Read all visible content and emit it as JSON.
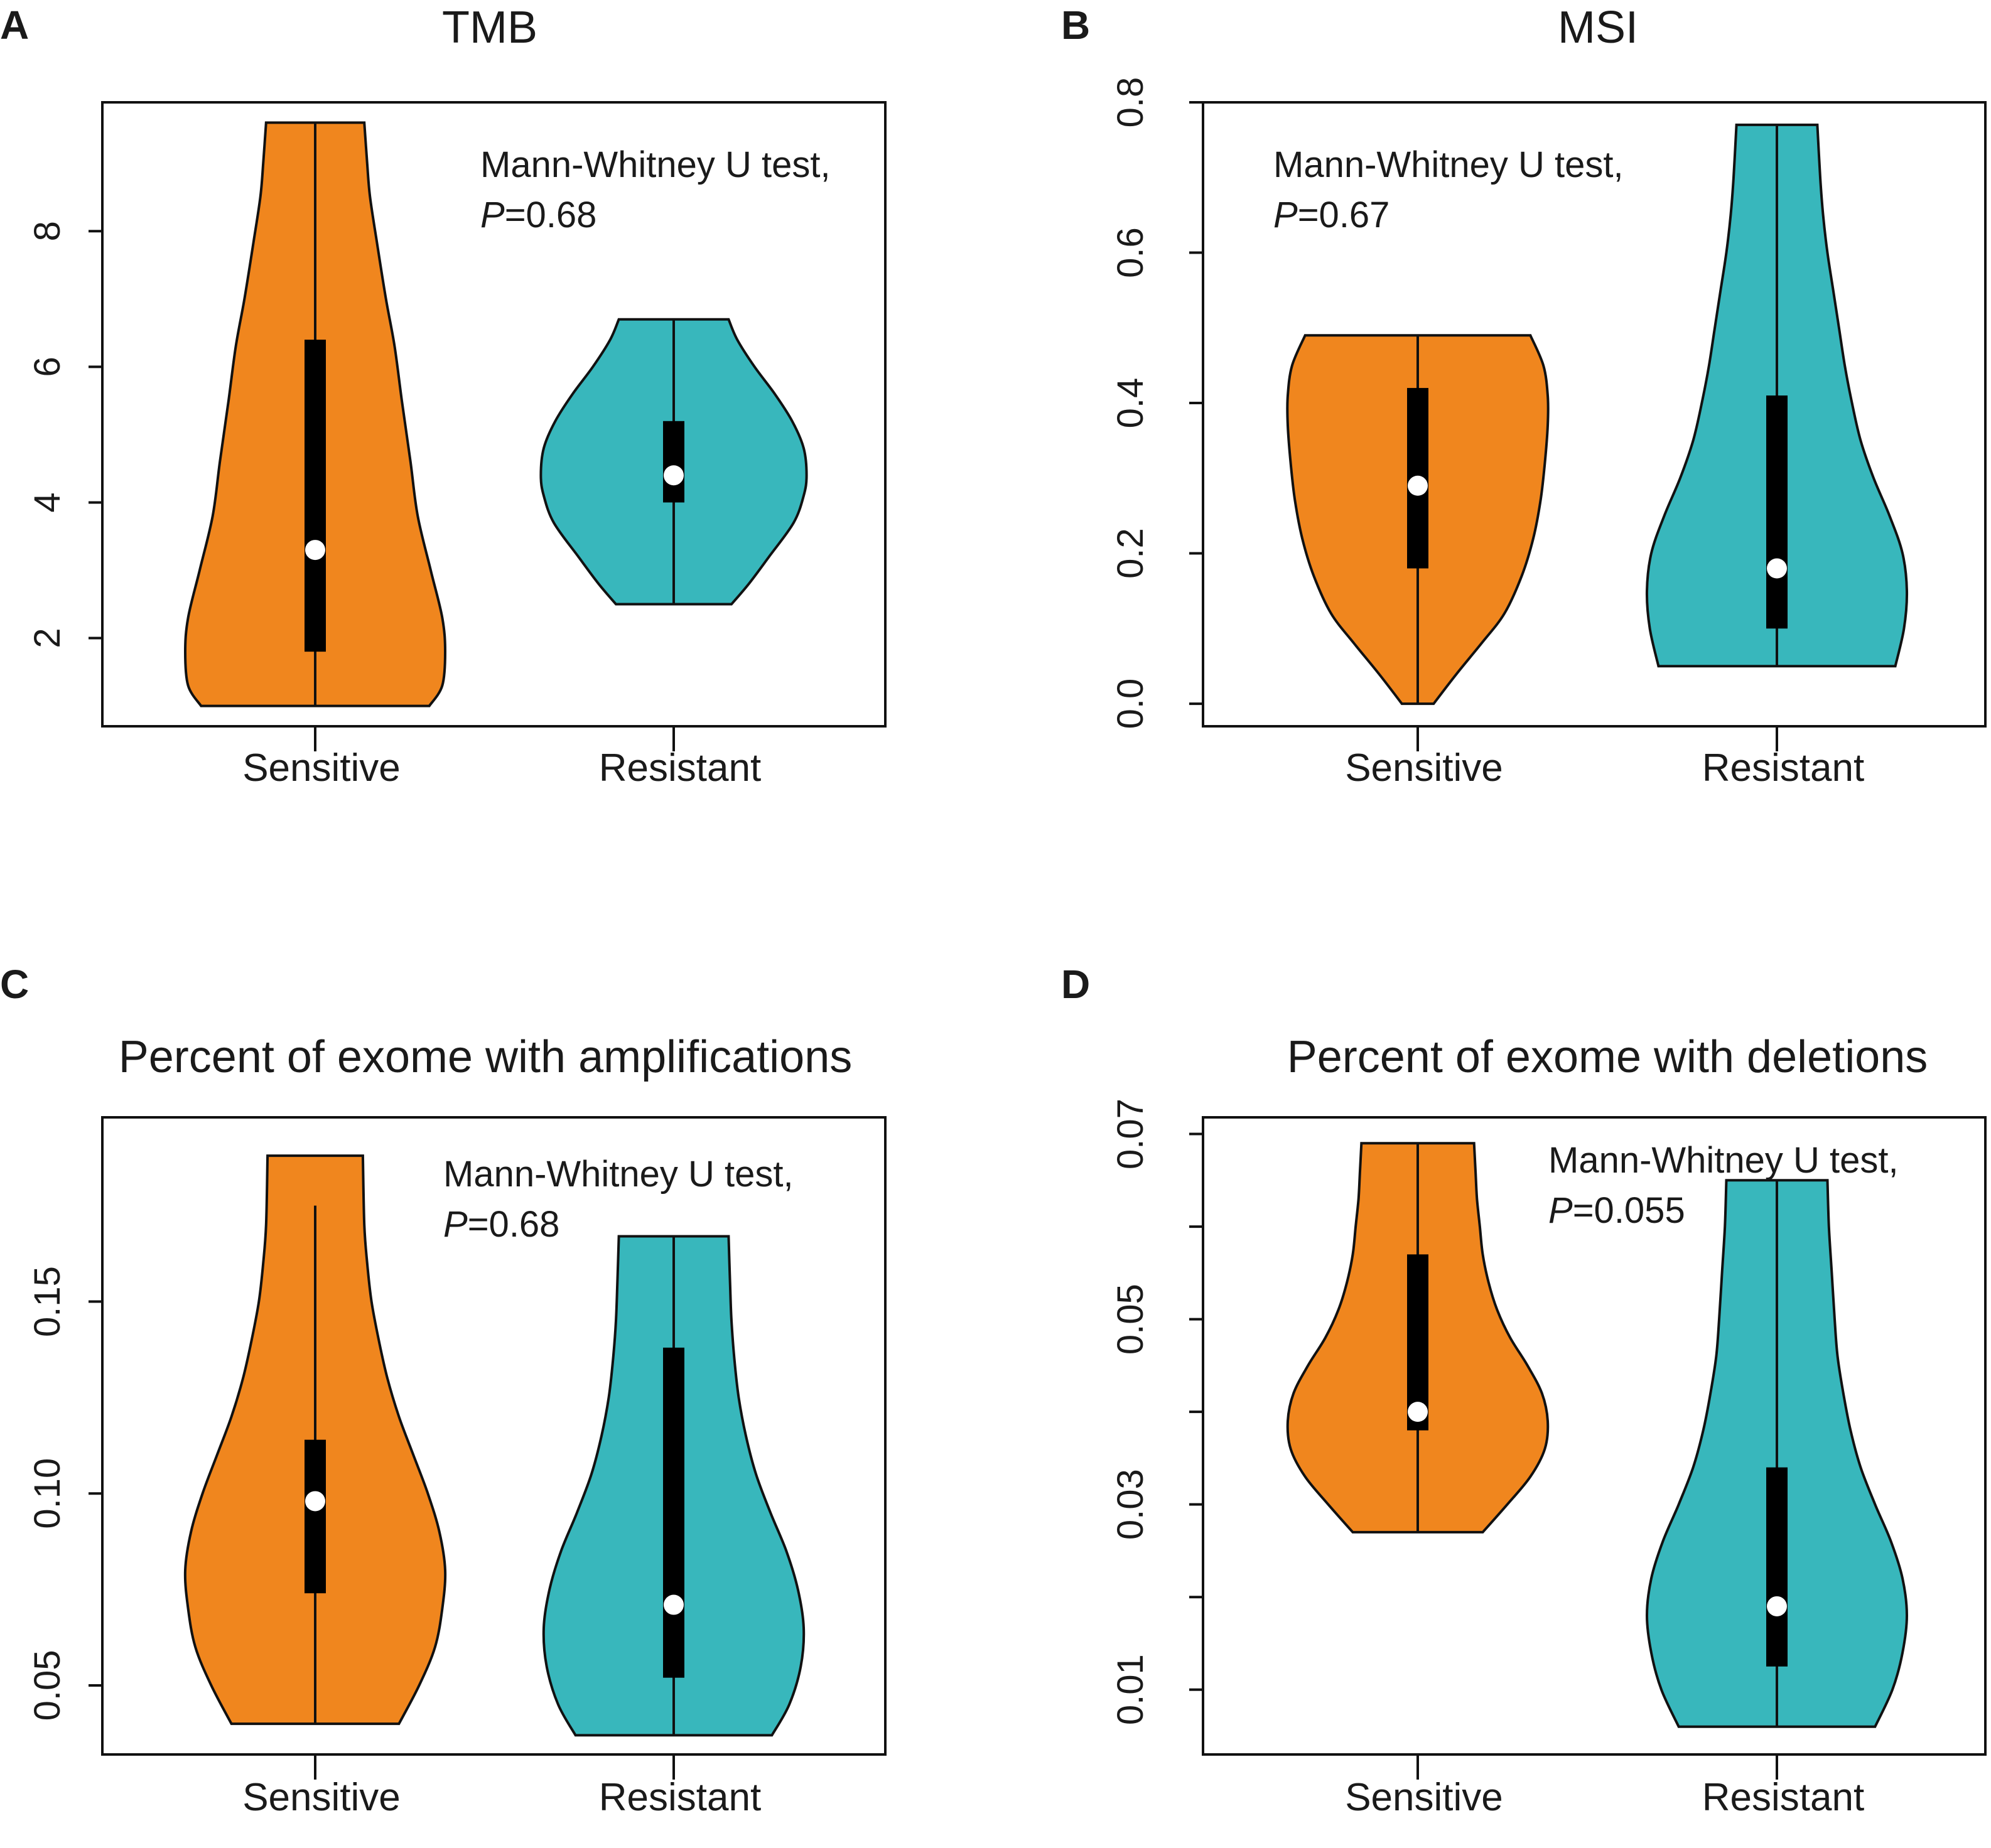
{
  "figure": {
    "background": "#ffffff"
  },
  "colors": {
    "sensitive": "#F0861E",
    "resistant": "#38B7BC",
    "outline": "#111111",
    "box": "#000000",
    "median": "#ffffff"
  },
  "chart_data": [
    {
      "panel": "A",
      "type": "violin",
      "title": "TMB",
      "xlabel": "",
      "ylabel": "",
      "categories": [
        "Sensitive",
        "Resistant"
      ],
      "yticks": [
        2,
        4,
        6,
        8
      ],
      "ytick_labels": [
        "2",
        "4",
        "6",
        "8"
      ],
      "ylim": [
        0.7,
        9.9
      ],
      "series": [
        {
          "name": "Sensitive",
          "min": 1.0,
          "q1": 1.8,
          "median": 3.3,
          "q3": 6.4,
          "max": 9.6,
          "density": [
            [
              1.0,
              0.79
            ],
            [
              1.3,
              0.88
            ],
            [
              1.8,
              0.9
            ],
            [
              2.3,
              0.88
            ],
            [
              3.0,
              0.8
            ],
            [
              3.8,
              0.71
            ],
            [
              4.6,
              0.66
            ],
            [
              5.5,
              0.6
            ],
            [
              6.3,
              0.55
            ],
            [
              7.0,
              0.49
            ],
            [
              7.8,
              0.43
            ],
            [
              8.5,
              0.38
            ],
            [
              9.0,
              0.36
            ],
            [
              9.6,
              0.34
            ]
          ]
        },
        {
          "name": "Resistant",
          "min": 2.5,
          "q1": 4.0,
          "median": 4.4,
          "q3": 5.2,
          "max": 6.7,
          "density": [
            [
              2.5,
              0.4
            ],
            [
              2.8,
              0.52
            ],
            [
              3.2,
              0.66
            ],
            [
              3.7,
              0.83
            ],
            [
              4.1,
              0.9
            ],
            [
              4.4,
              0.92
            ],
            [
              4.8,
              0.9
            ],
            [
              5.2,
              0.82
            ],
            [
              5.6,
              0.7
            ],
            [
              6.0,
              0.56
            ],
            [
              6.4,
              0.44
            ],
            [
              6.7,
              0.38
            ]
          ]
        }
      ],
      "annotation": {
        "line1": "Mann-Whitney U test,",
        "p_label": "P",
        "p_value": "=0.68"
      }
    },
    {
      "panel": "B",
      "type": "violin",
      "title": "MSI",
      "xlabel": "",
      "ylabel": "",
      "categories": [
        "Sensitive",
        "Resistant"
      ],
      "yticks": [
        0.0,
        0.2,
        0.4,
        0.6,
        0.8
      ],
      "ytick_labels": [
        "0.0",
        "0.2",
        "0.4",
        "0.6",
        "0.8"
      ],
      "ylim": [
        -0.03,
        0.8
      ],
      "series": [
        {
          "name": "Sensitive",
          "min": 0.0,
          "q1": 0.18,
          "median": 0.29,
          "q3": 0.42,
          "max": 0.49,
          "density": [
            [
              0.0,
              0.11
            ],
            [
              0.04,
              0.27
            ],
            [
              0.08,
              0.44
            ],
            [
              0.12,
              0.6
            ],
            [
              0.17,
              0.72
            ],
            [
              0.22,
              0.8
            ],
            [
              0.27,
              0.85
            ],
            [
              0.32,
              0.88
            ],
            [
              0.37,
              0.9
            ],
            [
              0.41,
              0.9
            ],
            [
              0.45,
              0.87
            ],
            [
              0.49,
              0.78
            ]
          ]
        },
        {
          "name": "Resistant",
          "min": 0.05,
          "q1": 0.1,
          "median": 0.18,
          "q3": 0.41,
          "max": 0.77,
          "density": [
            [
              0.05,
              0.82
            ],
            [
              0.1,
              0.88
            ],
            [
              0.15,
              0.9
            ],
            [
              0.2,
              0.87
            ],
            [
              0.25,
              0.78
            ],
            [
              0.3,
              0.67
            ],
            [
              0.35,
              0.58
            ],
            [
              0.4,
              0.52
            ],
            [
              0.45,
              0.47
            ],
            [
              0.5,
              0.43
            ],
            [
              0.55,
              0.39
            ],
            [
              0.6,
              0.35
            ],
            [
              0.65,
              0.32
            ],
            [
              0.7,
              0.3
            ],
            [
              0.77,
              0.28
            ]
          ]
        }
      ],
      "annotation": {
        "line1": "Mann-Whitney U test,",
        "p_label": "P",
        "p_value": "=0.67"
      }
    },
    {
      "panel": "C",
      "type": "violin",
      "title": "Percent of exome with amplifications",
      "xlabel": "",
      "ylabel": "",
      "categories": [
        "Sensitive",
        "Resistant"
      ],
      "yticks": [
        0.05,
        0.1,
        0.15
      ],
      "ytick_labels": [
        "0.05",
        "0.10",
        "0.15"
      ],
      "ylim": [
        0.032,
        0.198
      ],
      "series": [
        {
          "name": "Sensitive",
          "min": 0.04,
          "q1": 0.074,
          "median": 0.098,
          "q3": 0.114,
          "max": 0.188,
          "lower_whisker": 0.04,
          "upper_whisker": 0.175,
          "density": [
            [
              0.04,
              0.58
            ],
            [
              0.05,
              0.72
            ],
            [
              0.06,
              0.83
            ],
            [
              0.07,
              0.88
            ],
            [
              0.08,
              0.9
            ],
            [
              0.09,
              0.86
            ],
            [
              0.1,
              0.78
            ],
            [
              0.11,
              0.68
            ],
            [
              0.12,
              0.58
            ],
            [
              0.13,
              0.5
            ],
            [
              0.14,
              0.44
            ],
            [
              0.15,
              0.39
            ],
            [
              0.16,
              0.36
            ],
            [
              0.17,
              0.34
            ],
            [
              0.188,
              0.33
            ]
          ]
        },
        {
          "name": "Resistant",
          "min": 0.037,
          "q1": 0.052,
          "median": 0.071,
          "q3": 0.138,
          "max": 0.167,
          "density": [
            [
              0.037,
              0.68
            ],
            [
              0.045,
              0.8
            ],
            [
              0.055,
              0.88
            ],
            [
              0.065,
              0.9
            ],
            [
              0.075,
              0.86
            ],
            [
              0.085,
              0.78
            ],
            [
              0.095,
              0.67
            ],
            [
              0.105,
              0.57
            ],
            [
              0.115,
              0.5
            ],
            [
              0.125,
              0.45
            ],
            [
              0.135,
              0.42
            ],
            [
              0.145,
              0.4
            ],
            [
              0.155,
              0.39
            ],
            [
              0.167,
              0.38
            ]
          ]
        }
      ],
      "annotation": {
        "line1": "Mann-Whitney U test,",
        "p_label": "P",
        "p_value": "=0.68"
      }
    },
    {
      "panel": "D",
      "type": "violin",
      "title": "Percent of exome with deletions",
      "xlabel": "",
      "ylabel": "",
      "categories": [
        "Sensitive",
        "Resistant"
      ],
      "yticks": [
        0.01,
        0.02,
        0.03,
        0.04,
        0.05,
        0.06,
        0.07
      ],
      "ytick_labels": [
        "0.01",
        "",
        "0.03",
        "",
        "0.05",
        "",
        "0.07"
      ],
      "ylim": [
        0.003,
        0.0718
      ],
      "series": [
        {
          "name": "Sensitive",
          "min": 0.027,
          "q1": 0.038,
          "median": 0.04,
          "q3": 0.057,
          "max": 0.069,
          "density": [
            [
              0.027,
              0.45
            ],
            [
              0.03,
              0.62
            ],
            [
              0.033,
              0.78
            ],
            [
              0.036,
              0.88
            ],
            [
              0.039,
              0.9
            ],
            [
              0.042,
              0.86
            ],
            [
              0.045,
              0.76
            ],
            [
              0.048,
              0.64
            ],
            [
              0.051,
              0.55
            ],
            [
              0.054,
              0.49
            ],
            [
              0.057,
              0.45
            ],
            [
              0.06,
              0.43
            ],
            [
              0.063,
              0.41
            ],
            [
              0.066,
              0.4
            ],
            [
              0.069,
              0.39
            ]
          ]
        },
        {
          "name": "Resistant",
          "min": 0.006,
          "q1": 0.0125,
          "median": 0.019,
          "q3": 0.034,
          "max": 0.065,
          "density": [
            [
              0.006,
              0.68
            ],
            [
              0.01,
              0.8
            ],
            [
              0.014,
              0.87
            ],
            [
              0.018,
              0.9
            ],
            [
              0.022,
              0.87
            ],
            [
              0.026,
              0.79
            ],
            [
              0.03,
              0.68
            ],
            [
              0.034,
              0.58
            ],
            [
              0.038,
              0.51
            ],
            [
              0.042,
              0.46
            ],
            [
              0.046,
              0.42
            ],
            [
              0.05,
              0.4
            ],
            [
              0.055,
              0.38
            ],
            [
              0.06,
              0.36
            ],
            [
              0.065,
              0.35
            ]
          ]
        }
      ],
      "annotation": {
        "line1": "Mann-Whitney U test,",
        "p_label": "P",
        "p_value": "=0.055"
      }
    }
  ]
}
